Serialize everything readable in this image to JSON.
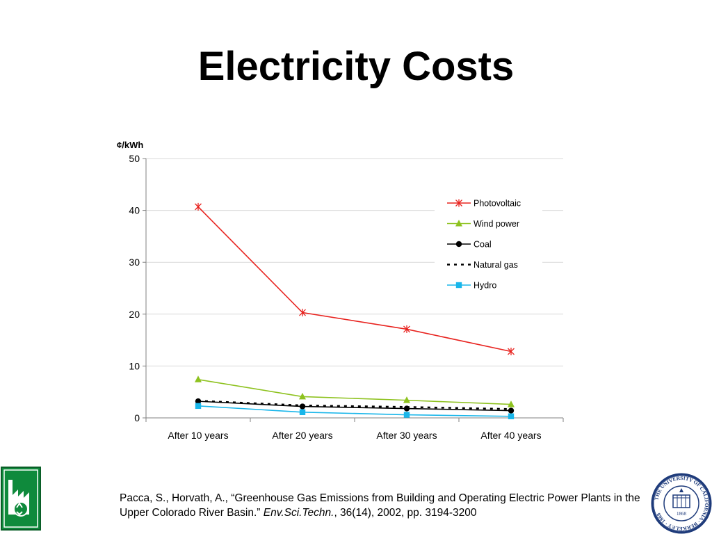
{
  "slide": {
    "title": "Electricity Costs"
  },
  "chart_data": {
    "type": "line",
    "ylabel": "¢/kWh",
    "xlabel": "",
    "categories": [
      "After 10 years",
      "After 20 years",
      "After 30 years",
      "After 40 years"
    ],
    "ylim": [
      0,
      50
    ],
    "yticks": [
      0,
      10,
      20,
      30,
      40,
      50
    ],
    "grid": true,
    "legend_position": "right",
    "series": [
      {
        "name": "Photovoltaic",
        "values": [
          40.7,
          20.3,
          17.1,
          12.8
        ],
        "color": "#e8231f",
        "marker": "star",
        "dash": false
      },
      {
        "name": "Wind power",
        "values": [
          7.4,
          4.1,
          3.4,
          2.6
        ],
        "color": "#8ec21f",
        "marker": "triangle",
        "dash": false
      },
      {
        "name": "Coal",
        "values": [
          3.2,
          2.2,
          1.8,
          1.4
        ],
        "color": "#000000",
        "marker": "circle",
        "dash": false
      },
      {
        "name": "Natural gas",
        "values": [
          3.3,
          2.4,
          2.1,
          1.7
        ],
        "color": "#000000",
        "marker": "none",
        "dash": true
      },
      {
        "name": "Hydro",
        "values": [
          2.3,
          1.1,
          0.6,
          0.3
        ],
        "color": "#19b6ea",
        "marker": "square",
        "dash": false
      }
    ]
  },
  "citation": {
    "authors": "Pacca, S., Horvath, A., “Greenhouse Gas Emissions from Building and Operating Electric Power Plants in the Upper Colorado River Basin.”",
    "journal": "Env.Sci.Techn.",
    "details": ", 36(14), 2002, pp. 3194-3200"
  },
  "logos": {
    "right_seal_text": "THE UNIVERSITY OF CALIFORNIA · BERKELEY · 1868",
    "right_seal_year": "1868"
  },
  "icons": {
    "left_logo": "recycling-factory-icon",
    "right_logo": "university-seal-icon"
  }
}
